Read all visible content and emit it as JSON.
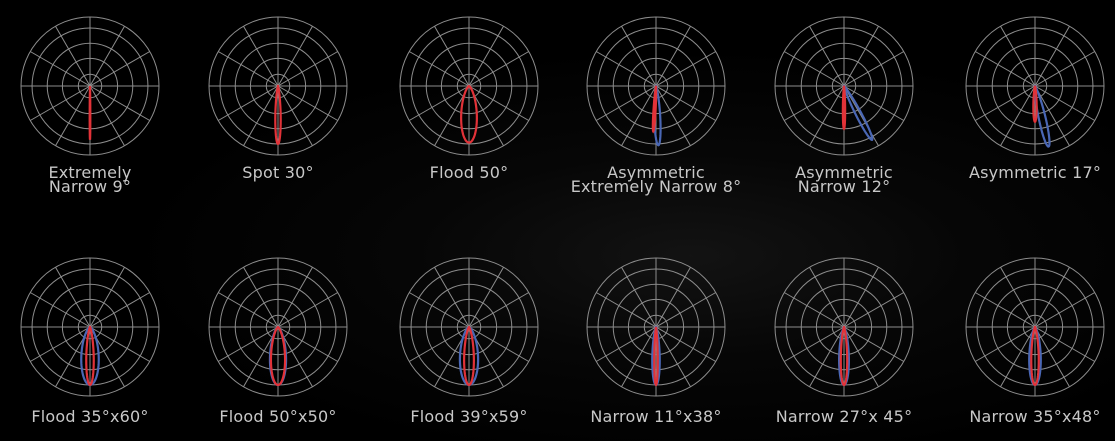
{
  "colors": {
    "background": "#000000",
    "grid": "#8d8d8d",
    "red_beam": "#e23238",
    "blue_beam": "#4a67b5",
    "caption": "#c8c8c8"
  },
  "diagrams": [
    {
      "caption": "Extremely\nNarrow 9°",
      "beams": [
        {
          "color": "red",
          "spread": 0.04,
          "length": 0.78,
          "offset": 0.0
        }
      ]
    },
    {
      "caption": "Spot 30°",
      "beams": [
        {
          "color": "red",
          "spread": 0.16,
          "length": 0.84,
          "offset": 0.0
        }
      ]
    },
    {
      "caption": "Flood 50°",
      "beams": [
        {
          "color": "red",
          "spread": 0.34,
          "length": 0.82,
          "offset": 0.0
        }
      ]
    },
    {
      "caption": "Asymmetric\nExtremely  Narrow 8°",
      "beams": [
        {
          "color": "blue",
          "spread": 0.17,
          "length": 0.86,
          "offset": -0.04
        },
        {
          "color": "red",
          "spread": 0.1,
          "length": 0.66,
          "offset": 0.06
        }
      ]
    },
    {
      "caption": "Asymmetric\nNarrow 12°",
      "beams": [
        {
          "color": "blue",
          "spread": 0.16,
          "length": 0.88,
          "offset": -0.48
        },
        {
          "color": "red",
          "spread": 0.11,
          "length": 0.62,
          "offset": 0.0
        }
      ]
    },
    {
      "caption": "Asymmetric 17°",
      "beams": [
        {
          "color": "blue",
          "spread": 0.18,
          "length": 0.9,
          "offset": -0.22
        },
        {
          "color": "red",
          "spread": 0.16,
          "length": 0.52,
          "offset": 0.0
        }
      ]
    },
    {
      "caption": "Flood 35°x60°",
      "beams": [
        {
          "color": "blue",
          "spread": 0.36,
          "length": 0.84,
          "offset": 0.0
        },
        {
          "color": "red",
          "spread": 0.2,
          "length": 0.84,
          "offset": 0.0
        }
      ]
    },
    {
      "caption": "Flood 50°x50°",
      "beams": [
        {
          "color": "blue",
          "spread": 0.34,
          "length": 0.84,
          "offset": 0.0
        },
        {
          "color": "red",
          "spread": 0.31,
          "length": 0.84,
          "offset": 0.0
        }
      ]
    },
    {
      "caption": "Flood 39°x59°",
      "beams": [
        {
          "color": "blue",
          "spread": 0.37,
          "length": 0.84,
          "offset": 0.0
        },
        {
          "color": "red",
          "spread": 0.24,
          "length": 0.84,
          "offset": 0.0
        }
      ]
    },
    {
      "caption": "Narrow 11°x38°",
      "beams": [
        {
          "color": "blue",
          "spread": 0.2,
          "length": 0.84,
          "offset": 0.0
        },
        {
          "color": "red",
          "spread": 0.12,
          "length": 0.84,
          "offset": 0.0
        }
      ]
    },
    {
      "caption": "Narrow 27°x 45°",
      "beams": [
        {
          "color": "blue",
          "spread": 0.24,
          "length": 0.84,
          "offset": 0.0
        },
        {
          "color": "red",
          "spread": 0.18,
          "length": 0.84,
          "offset": 0.0
        }
      ]
    },
    {
      "caption": "Narrow 35°x48°",
      "beams": [
        {
          "color": "blue",
          "spread": 0.27,
          "length": 0.84,
          "offset": 0.0
        },
        {
          "color": "red",
          "spread": 0.2,
          "length": 0.84,
          "offset": 0.0
        }
      ]
    }
  ]
}
